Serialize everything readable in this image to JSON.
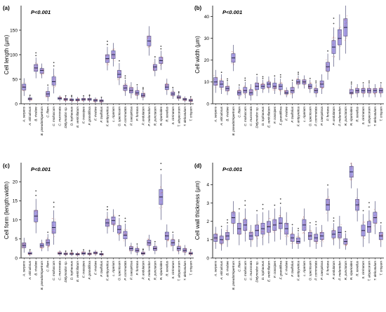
{
  "species": [
    "A. serpens",
    "A. viticulosus",
    "B. rivulare",
    "B. pseudotriquetrum",
    "C. filum",
    "C. molluscum",
    "C. mucronata",
    "Didymodon sp.",
    "D. tophaceus",
    "E. verticillatum",
    "F. crassipes",
    "F. grandiflora",
    "F. rivulare",
    "F. taxifolius",
    "F. antipyretica",
    "L. riparium",
    "O. speciosum",
    "P. commutata",
    "P. caespitosa",
    "P. fontana",
    "P. undulatum",
    "P. melanodon",
    "R. punctatum",
    "R. riparioides",
    "R. tenellus",
    "S. cirrinatum",
    "T. alopecurum",
    "T. delicatulum",
    "T. crispum"
  ],
  "colors": {
    "box_fill": "#9b8fe0",
    "box_stroke": "#3d3d6b",
    "jitter": "#c0605a"
  },
  "chart_data": [
    {
      "type": "box",
      "panel": "(a)",
      "annotation": "P<0.001",
      "ylabel": "Cell length (µm)",
      "ylim": [
        0,
        200
      ],
      "yticks": [
        0,
        50,
        100,
        150
      ],
      "medians": [
        34,
        10,
        73,
        68,
        20,
        45,
        11,
        9,
        8,
        8,
        9,
        9,
        7,
        6,
        92,
        100,
        60,
        32,
        27,
        22,
        17,
        128,
        75,
        88,
        34,
        20,
        13,
        9,
        7
      ],
      "boxes": [
        [
          28,
          40
        ],
        [
          8,
          12
        ],
        [
          66,
          80
        ],
        [
          62,
          72
        ],
        [
          15,
          25
        ],
        [
          38,
          55
        ],
        [
          9,
          13
        ],
        [
          7,
          11
        ],
        [
          6,
          10
        ],
        [
          6,
          10
        ],
        [
          7,
          11
        ],
        [
          7,
          11
        ],
        [
          5,
          9
        ],
        [
          4,
          8
        ],
        [
          84,
          100
        ],
        [
          92,
          108
        ],
        [
          53,
          68
        ],
        [
          27,
          38
        ],
        [
          22,
          33
        ],
        [
          18,
          27
        ],
        [
          14,
          21
        ],
        [
          118,
          138
        ],
        [
          68,
          80
        ],
        [
          82,
          95
        ],
        [
          29,
          40
        ],
        [
          17,
          24
        ],
        [
          11,
          16
        ],
        [
          7,
          11
        ],
        [
          5,
          9
        ]
      ]
    },
    {
      "type": "box",
      "panel": "(b)",
      "annotation": "P<0.001",
      "ylabel": "Cell width (µm)",
      "ylim": [
        0,
        45
      ],
      "yticks": [
        0,
        10,
        20,
        30,
        40
      ],
      "medians": [
        10,
        9,
        7,
        21,
        5,
        6,
        5,
        8,
        8,
        9,
        8,
        8,
        5,
        6,
        10,
        10,
        8,
        6,
        9,
        17,
        26,
        30,
        35,
        5,
        6,
        6,
        6,
        6,
        6
      ],
      "boxes": [
        [
          8.5,
          12
        ],
        [
          7.5,
          10.5
        ],
        [
          6,
          8
        ],
        [
          19,
          23
        ],
        [
          4,
          6
        ],
        [
          5,
          7.5
        ],
        [
          4,
          6.5
        ],
        [
          6.5,
          9.5
        ],
        [
          7,
          9
        ],
        [
          7.5,
          10
        ],
        [
          7,
          9.5
        ],
        [
          6.5,
          9
        ],
        [
          4.5,
          6
        ],
        [
          5,
          7.5
        ],
        [
          9,
          11
        ],
        [
          9,
          11
        ],
        [
          7,
          9
        ],
        [
          5,
          7
        ],
        [
          7.5,
          10.5
        ],
        [
          15,
          19
        ],
        [
          23,
          29
        ],
        [
          27,
          34
        ],
        [
          31,
          39
        ],
        [
          4.5,
          6.5
        ],
        [
          5,
          7
        ],
        [
          5,
          7
        ],
        [
          5,
          7
        ],
        [
          5,
          7
        ],
        [
          5,
          7
        ]
      ]
    },
    {
      "type": "box",
      "panel": "(c)",
      "annotation": "P<0.001",
      "ylabel": "Cell form (length:width)",
      "ylim": [
        0,
        25
      ],
      "yticks": [
        0,
        5,
        10,
        15,
        20
      ],
      "medians": [
        3.3,
        1.2,
        11,
        3.3,
        4,
        8,
        1.2,
        1.1,
        1.1,
        1,
        1.2,
        1.1,
        1.3,
        1,
        9.2,
        9.8,
        7.5,
        6,
        2.5,
        2,
        1.2,
        4,
        2.5,
        16,
        5.8,
        4,
        2.5,
        2,
        1.2
      ],
      "boxes": [
        [
          2.7,
          4
        ],
        [
          1,
          1.5
        ],
        [
          9.5,
          12.5
        ],
        [
          2.8,
          3.8
        ],
        [
          3.3,
          4.8
        ],
        [
          6.5,
          9.5
        ],
        [
          1,
          1.5
        ],
        [
          0.9,
          1.3
        ],
        [
          0.9,
          1.3
        ],
        [
          0.8,
          1.2
        ],
        [
          1,
          1.5
        ],
        [
          0.9,
          1.3
        ],
        [
          1.1,
          1.6
        ],
        [
          0.8,
          1.2
        ],
        [
          8.3,
          10.2
        ],
        [
          8.8,
          10.8
        ],
        [
          6.5,
          8.5
        ],
        [
          5,
          7
        ],
        [
          2,
          3
        ],
        [
          1.6,
          2.5
        ],
        [
          1,
          1.5
        ],
        [
          3.3,
          4.7
        ],
        [
          2,
          3
        ],
        [
          14,
          18
        ],
        [
          4.8,
          6.8
        ],
        [
          3.3,
          4.8
        ],
        [
          2,
          3
        ],
        [
          1.6,
          2.5
        ],
        [
          1,
          1.5
        ]
      ]
    },
    {
      "type": "box",
      "panel": "(d)",
      "annotation": "P<0.001",
      "ylabel": "Cell wall thickness (µm)",
      "ylim": [
        0,
        5.2
      ],
      "yticks": [
        0,
        1,
        2,
        3,
        4
      ],
      "medians": [
        1.1,
        1,
        1.2,
        2.2,
        1.6,
        1.8,
        1.2,
        1.5,
        1.6,
        1.7,
        1.8,
        1.9,
        1.6,
        1.1,
        0.9,
        1.8,
        1.2,
        1.1,
        1.2,
        2.9,
        1.3,
        1.4,
        0.9,
        4.7,
        2.9,
        1.5,
        1.7,
        2.2,
        1.2
      ],
      "boxes": [
        [
          0.9,
          1.3
        ],
        [
          0.8,
          1.2
        ],
        [
          1,
          1.4
        ],
        [
          1.9,
          2.5
        ],
        [
          1.3,
          1.9
        ],
        [
          1.5,
          2.1
        ],
        [
          1,
          1.4
        ],
        [
          1.2,
          1.8
        ],
        [
          1.3,
          1.9
        ],
        [
          1.4,
          2
        ],
        [
          1.5,
          2.1
        ],
        [
          1.6,
          2.2
        ],
        [
          1.3,
          1.9
        ],
        [
          0.9,
          1.3
        ],
        [
          0.8,
          1.1
        ],
        [
          1.5,
          2.1
        ],
        [
          1,
          1.4
        ],
        [
          0.9,
          1.3
        ],
        [
          1,
          1.4
        ],
        [
          2.6,
          3.2
        ],
        [
          1.1,
          1.5
        ],
        [
          1.1,
          1.7
        ],
        [
          0.75,
          1.05
        ],
        [
          4.4,
          5
        ],
        [
          2.6,
          3.2
        ],
        [
          1.2,
          1.8
        ],
        [
          1.4,
          2
        ],
        [
          1.9,
          2.5
        ],
        [
          1,
          1.4
        ]
      ]
    }
  ]
}
